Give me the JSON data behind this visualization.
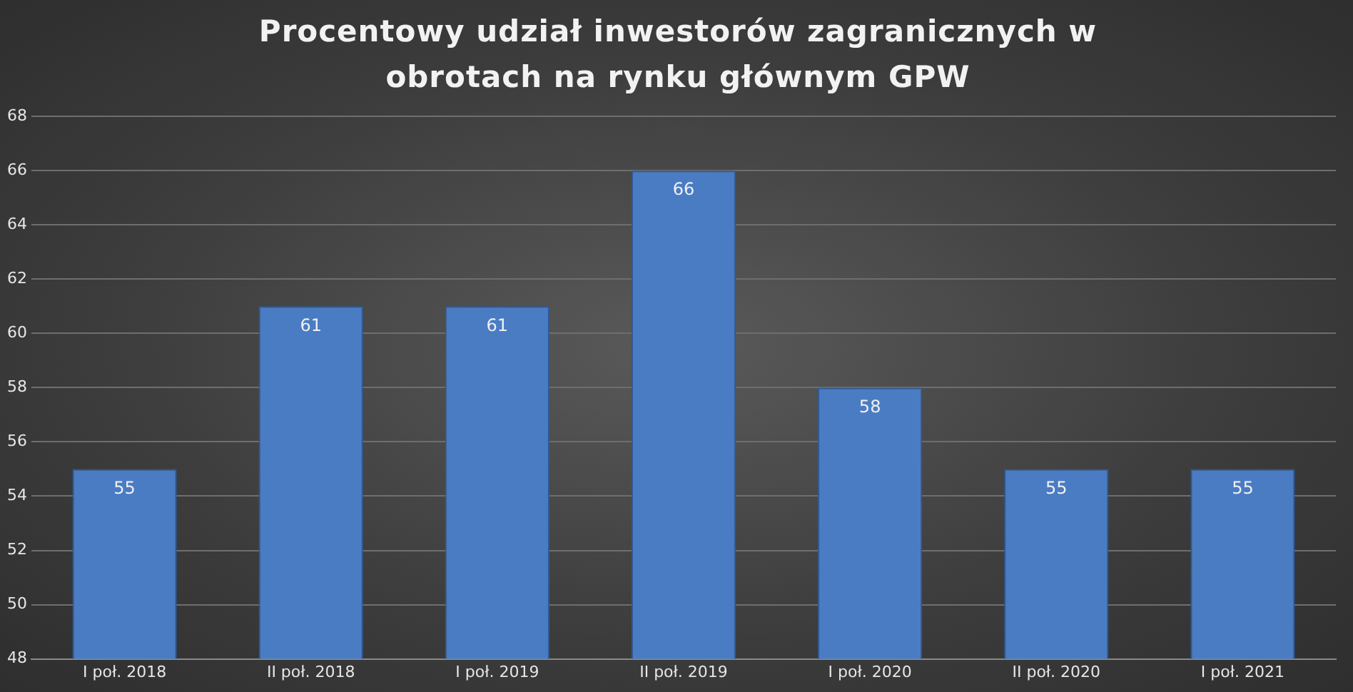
{
  "chart_data": {
    "type": "bar",
    "title": "Procentowy udział inwestorów zagranicznych w obrotach na rynku głównym GPW",
    "categories": [
      "I poł. 2018",
      "II poł. 2018",
      "I poł. 2019",
      "II poł. 2019",
      "I poł. 2020",
      "II poł. 2020",
      "I poł. 2021"
    ],
    "values": [
      55,
      61,
      61,
      66,
      58,
      55,
      55
    ],
    "color": "#4a7cc4",
    "ylim": [
      48,
      68
    ],
    "yticks": [
      48,
      50,
      52,
      54,
      56,
      58,
      60,
      62,
      64,
      66,
      68
    ],
    "grid": "y",
    "data_labels": true,
    "legend": false
  }
}
